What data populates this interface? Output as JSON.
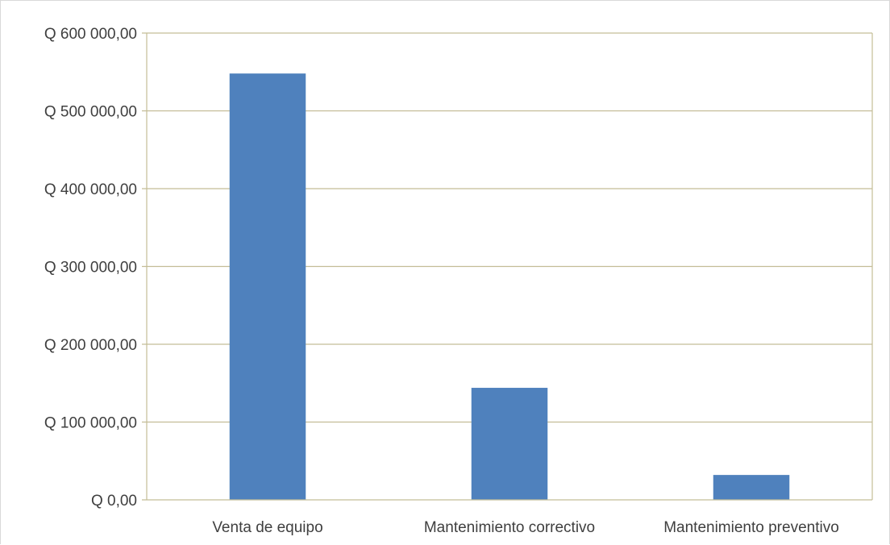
{
  "chart_data": {
    "type": "bar",
    "categories": [
      "Venta de equipo",
      "Mantenimiento correctivo",
      "Mantenimiento preventivo"
    ],
    "values": [
      548000,
      144000,
      32000
    ],
    "ylim": [
      0,
      600000
    ],
    "yticks": [
      0,
      100000,
      200000,
      300000,
      400000,
      500000,
      600000
    ],
    "ytick_labels": [
      "Q 0,00",
      "Q 100 000,00",
      "Q 200 000,00",
      "Q 300 000,00",
      "Q 400 000,00",
      "Q 500 000,00",
      "Q 600 000,00"
    ],
    "grid": true,
    "legend": "none",
    "colors": {
      "bar": "#4f81bd",
      "grid": "#c4bd97",
      "axis": "#c4bd97",
      "text": "#3f3f3f"
    }
  }
}
